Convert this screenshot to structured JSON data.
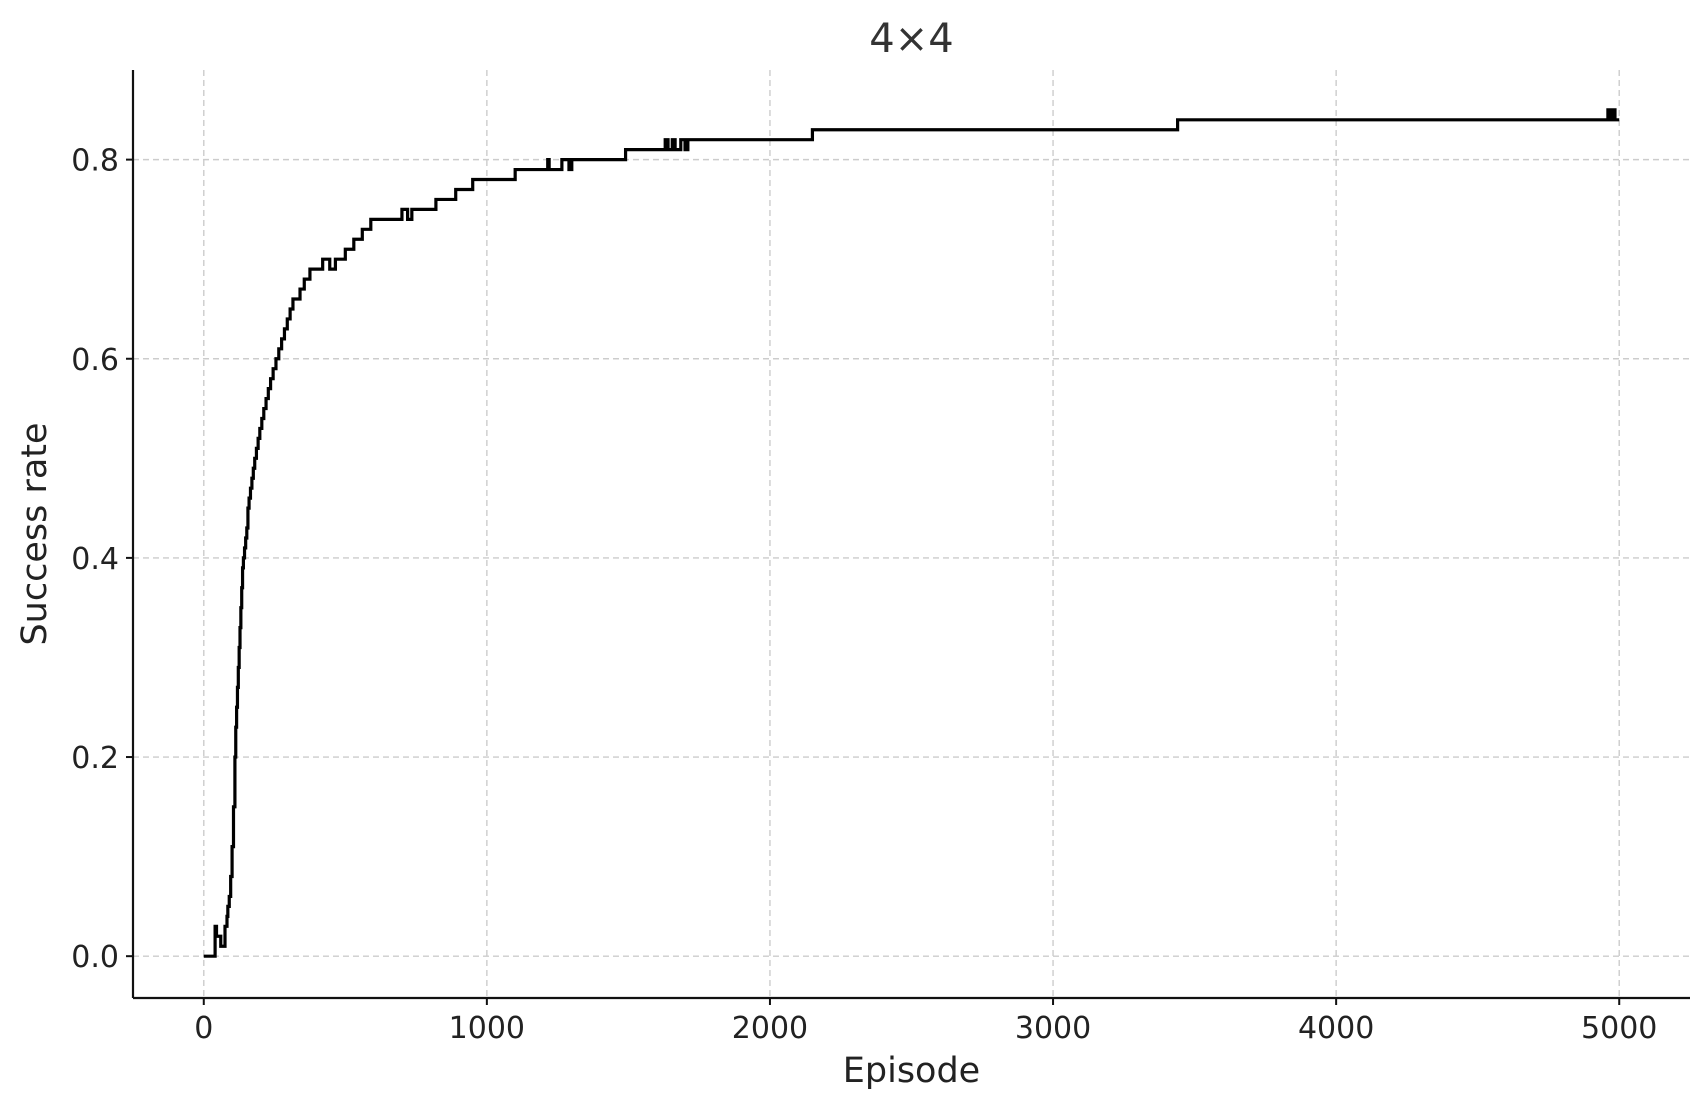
{
  "chart_data": {
    "type": "line",
    "title": "4×4",
    "xlabel": "Episode",
    "ylabel": "Success rate",
    "xlim": [
      -250,
      5250
    ],
    "ylim": [
      -0.042,
      0.89
    ],
    "xticks": [
      0,
      1000,
      2000,
      3000,
      4000,
      5000
    ],
    "xtick_labels": [
      "0",
      "1000",
      "2000",
      "3000",
      "4000",
      "5000"
    ],
    "yticks": [
      0.0,
      0.2,
      0.4,
      0.6,
      0.8
    ],
    "ytick_labels": [
      "0.0",
      "0.2",
      "0.4",
      "0.6",
      "0.8"
    ],
    "grid": true,
    "step": true,
    "line_color": "#000000",
    "series": [
      {
        "x": [
          0,
          40,
          40,
          45,
          45,
          60,
          60,
          75,
          75,
          82,
          85,
          90,
          95,
          100,
          105,
          110,
          113,
          116,
          119,
          122,
          125,
          128,
          131,
          134,
          137,
          140,
          144,
          148,
          152,
          156,
          160,
          165,
          170,
          175,
          180,
          186,
          192,
          198,
          205,
          212,
          220,
          228,
          236,
          245,
          255,
          265,
          275,
          285,
          295,
          305,
          315,
          325,
          340,
          355,
          375,
          395,
          420,
          445,
          465,
          470,
          480,
          500,
          530,
          560,
          590,
          630,
          700,
          720,
          735,
          820,
          890,
          950,
          970,
          1100,
          1215,
          1220,
          1265,
          1290,
          1300,
          1490,
          1630,
          1640,
          1655,
          1665,
          1685,
          1700,
          1710,
          1745,
          2150,
          3440,
          4960,
          4965,
          4975,
          4985,
          4990,
          5000
        ],
        "y": [
          0.0,
          0.0,
          0.03,
          0.03,
          0.02,
          0.02,
          0.01,
          0.01,
          0.03,
          0.04,
          0.05,
          0.06,
          0.08,
          0.11,
          0.15,
          0.2,
          0.23,
          0.25,
          0.27,
          0.29,
          0.31,
          0.33,
          0.35,
          0.37,
          0.39,
          0.4,
          0.41,
          0.42,
          0.43,
          0.45,
          0.46,
          0.47,
          0.48,
          0.49,
          0.5,
          0.51,
          0.52,
          0.53,
          0.54,
          0.55,
          0.56,
          0.57,
          0.58,
          0.59,
          0.6,
          0.61,
          0.62,
          0.63,
          0.64,
          0.65,
          0.66,
          0.66,
          0.67,
          0.68,
          0.69,
          0.69,
          0.7,
          0.69,
          0.7,
          0.7,
          0.7,
          0.71,
          0.72,
          0.73,
          0.74,
          0.74,
          0.75,
          0.74,
          0.75,
          0.76,
          0.77,
          0.78,
          0.78,
          0.79,
          0.8,
          0.79,
          0.8,
          0.79,
          0.8,
          0.81,
          0.82,
          0.81,
          0.82,
          0.81,
          0.82,
          0.81,
          0.82,
          0.82,
          0.83,
          0.84,
          0.85,
          0.84,
          0.85,
          0.84,
          0.84,
          0.84
        ]
      }
    ]
  }
}
